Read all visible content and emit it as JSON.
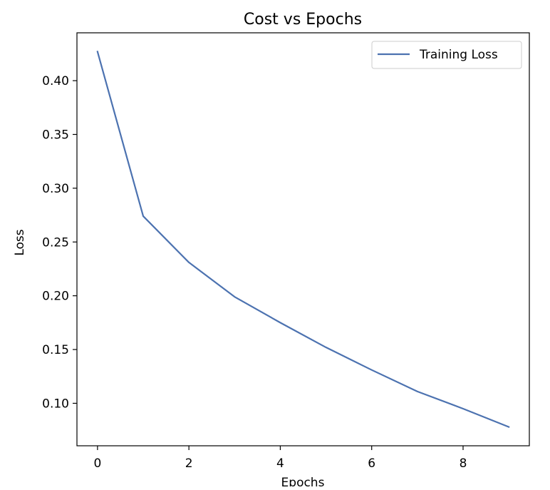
{
  "chart_data": {
    "type": "line",
    "title": "Cost vs Epochs",
    "xlabel": "Epochs",
    "ylabel": "Loss",
    "x": [
      0,
      1,
      2,
      3,
      4,
      5,
      6,
      7,
      8,
      9
    ],
    "series": [
      {
        "name": "Training Loss",
        "color": "#4c72b0",
        "values": [
          0.427,
          0.274,
          0.231,
          0.199,
          0.175,
          0.152,
          0.131,
          0.111,
          0.095,
          0.078
        ]
      }
    ],
    "xticks": [
      0,
      2,
      4,
      6,
      8
    ],
    "xtick_labels": [
      "0",
      "2",
      "4",
      "6",
      "8"
    ],
    "yticks": [
      0.1,
      0.15,
      0.2,
      0.25,
      0.3,
      0.35,
      0.4
    ],
    "ytick_labels": [
      "0.10",
      "0.15",
      "0.20",
      "0.25",
      "0.30",
      "0.35",
      "0.40"
    ],
    "xlim": [
      -0.45,
      9.45
    ],
    "ylim": [
      0.0605,
      0.4445
    ],
    "grid": false,
    "legend_position": "top-right"
  }
}
